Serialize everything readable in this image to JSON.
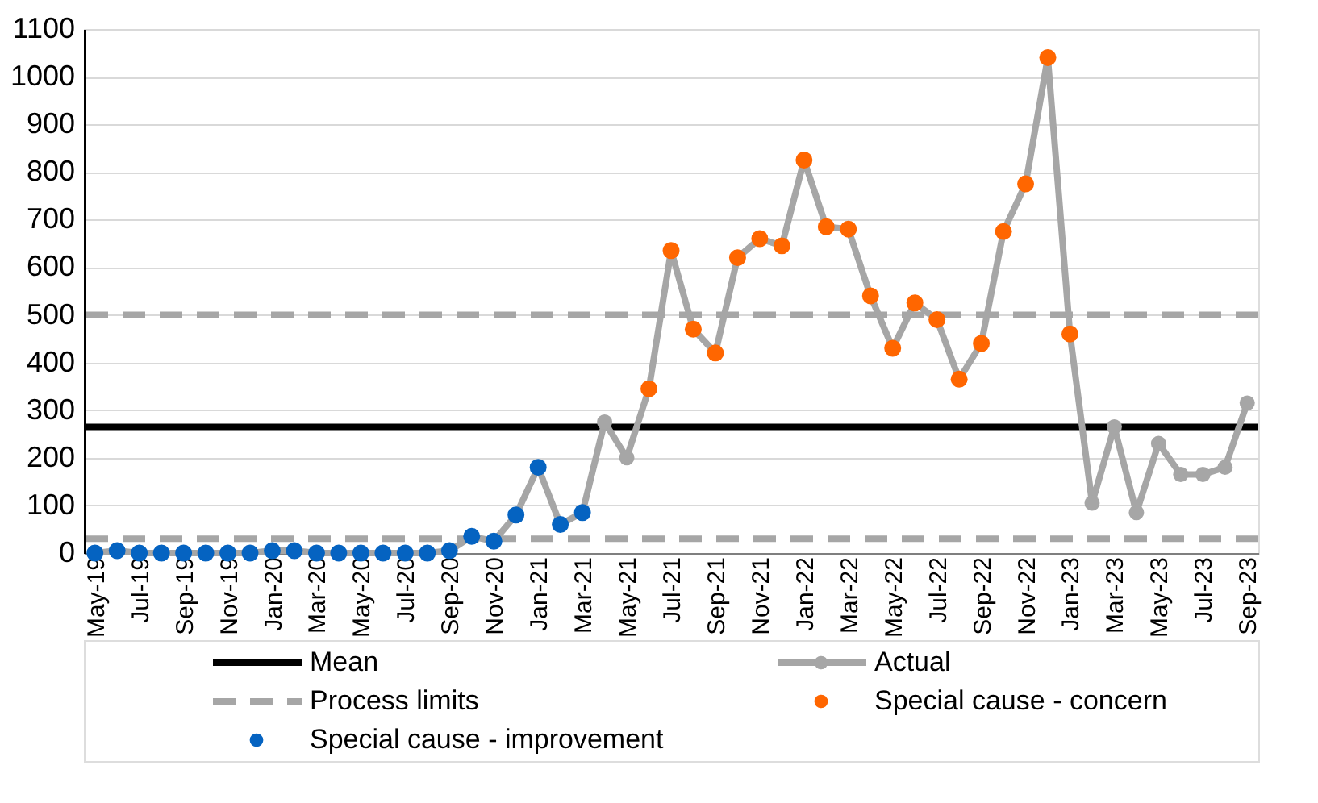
{
  "chart_data": {
    "type": "line",
    "categories": [
      "May-19",
      null,
      "Jul-19",
      null,
      "Sep-19",
      null,
      "Nov-19",
      null,
      "Jan-20",
      null,
      "Mar-20",
      null,
      "May-20",
      null,
      "Jul-20",
      null,
      "Sep-20",
      null,
      "Nov-20",
      null,
      "Jan-21",
      null,
      "Mar-21",
      null,
      "May-21",
      null,
      "Jul-21",
      null,
      "Sep-21",
      null,
      "Nov-21",
      null,
      "Jan-22",
      null,
      "Mar-22",
      null,
      "May-22",
      null,
      "Jul-22",
      null,
      "Sep-22",
      null,
      "Nov-22",
      null,
      "Jan-23",
      null,
      "Mar-23",
      null,
      "May-23",
      null,
      "Jul-23",
      null,
      "Sep-23"
    ],
    "series": [
      {
        "name": "Actual",
        "marker": "circle",
        "color": "#a6a6a6",
        "values": [
          0,
          5,
          0,
          0,
          0,
          0,
          0,
          0,
          5,
          5,
          0,
          0,
          0,
          0,
          0,
          0,
          5,
          35,
          25,
          80,
          180,
          60,
          85,
          275,
          200,
          345,
          635,
          470,
          420,
          620,
          660,
          645,
          825,
          685,
          680,
          540,
          430,
          525,
          490,
          365,
          440,
          675,
          775,
          1040,
          460,
          105,
          265,
          85,
          230,
          165,
          165,
          180,
          315
        ]
      },
      {
        "name": "Special cause - concern",
        "type": "scatter",
        "marker": "circle",
        "color": "#ff6600",
        "values": [
          null,
          null,
          null,
          null,
          null,
          null,
          null,
          null,
          null,
          null,
          null,
          null,
          null,
          null,
          null,
          null,
          null,
          null,
          null,
          null,
          null,
          null,
          null,
          null,
          null,
          345,
          635,
          470,
          420,
          620,
          660,
          645,
          825,
          685,
          680,
          540,
          430,
          525,
          490,
          365,
          440,
          675,
          775,
          1040,
          460,
          null,
          null,
          null,
          null,
          null,
          null,
          null,
          null
        ]
      },
      {
        "name": "Special cause - improvement",
        "type": "scatter",
        "marker": "circle",
        "color": "#0563c1",
        "values": [
          0,
          5,
          0,
          0,
          0,
          0,
          0,
          0,
          5,
          5,
          0,
          0,
          0,
          0,
          0,
          0,
          5,
          35,
          25,
          80,
          180,
          60,
          85,
          null,
          null,
          null,
          null,
          null,
          null,
          null,
          null,
          null,
          null,
          null,
          null,
          null,
          null,
          null,
          null,
          null,
          null,
          null,
          null,
          null,
          null,
          null,
          null,
          null,
          null,
          null,
          null,
          null,
          null
        ]
      }
    ],
    "ref_lines": [
      {
        "axis": "y",
        "value": 265,
        "label": "Mean",
        "color": "#000000",
        "line_style": "solid"
      },
      {
        "axis": "y",
        "value": 500,
        "label": "Process limits",
        "color": "#a6a6a6",
        "line_style": "dashed"
      },
      {
        "axis": "y",
        "value": 30,
        "color": "#a6a6a6",
        "line_style": "dashed"
      }
    ],
    "ylim": [
      0,
      1100
    ],
    "yticks": [
      0,
      100,
      200,
      300,
      400,
      500,
      600,
      700,
      800,
      900,
      1000,
      1100
    ],
    "grid": "y",
    "legend": "bottom"
  }
}
